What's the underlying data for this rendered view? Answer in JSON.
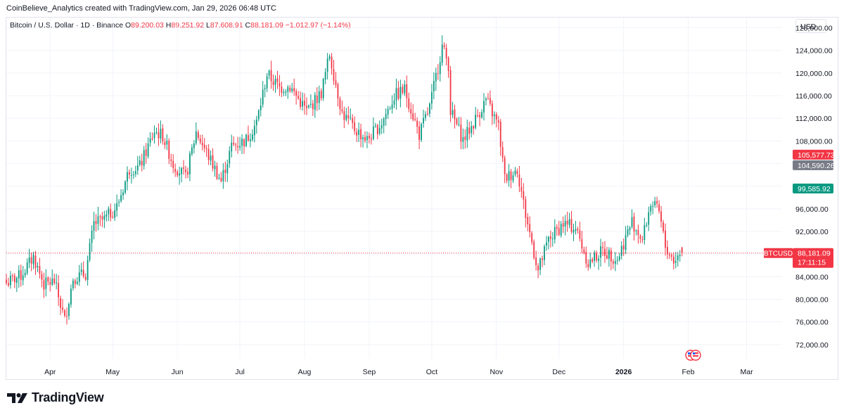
{
  "header": {
    "caption": "CoinBelieve_Analytics created with TradingView.com, Jan 29, 2026 06:48 UTC"
  },
  "legend": {
    "symbol": "Bitcoin / U.S. Dollar · 1D · Binance",
    "open_label": "O",
    "open": "89,200.03",
    "high_label": "H",
    "high": "89,251.92",
    "low_label": "L",
    "low": "87,608.91",
    "close_label": "C",
    "close": "88,181.09",
    "change": "−1,012.97 (−1.14%)"
  },
  "currency_button": "USD",
  "brand": {
    "name": "TradingView"
  },
  "colors": {
    "up": "#089981",
    "down": "#f23645",
    "grid": "#f0f3fa",
    "gray_label": "#787b86"
  },
  "chart_data": {
    "type": "candlestick",
    "symbol": "BTCUSD",
    "interval": "1D",
    "y_axis": {
      "range": [
        69500,
        129800
      ],
      "ticks": [
        72000,
        76000,
        80000,
        84000,
        88000,
        92000,
        96000,
        100000,
        104000,
        108000,
        112000,
        116000,
        120000,
        124000,
        128000
      ],
      "tick_labels": [
        "72,000.00",
        "76,000.00",
        "80,000.00",
        "84,000.00",
        "88,000.00",
        "92,000.00",
        "96,000.00",
        "100,000.00",
        "104,000.00",
        "108,000.00",
        "112,000.00",
        "116,000.00",
        "120,000.00",
        "124,000.00",
        "128,000.00"
      ]
    },
    "x_axis": {
      "range": [
        "2025-03-11",
        "2026-03-18"
      ],
      "ticks": [
        {
          "label": "Apr",
          "date": "2025-04-01",
          "bold": false
        },
        {
          "label": "May",
          "date": "2025-05-01",
          "bold": false
        },
        {
          "label": "Jun",
          "date": "2025-06-01",
          "bold": false
        },
        {
          "label": "Jul",
          "date": "2025-07-01",
          "bold": false
        },
        {
          "label": "Aug",
          "date": "2025-08-01",
          "bold": false
        },
        {
          "label": "Sep",
          "date": "2025-09-01",
          "bold": false
        },
        {
          "label": "Oct",
          "date": "2025-10-01",
          "bold": false
        },
        {
          "label": "Nov",
          "date": "2025-11-01",
          "bold": false
        },
        {
          "label": "Dec",
          "date": "2025-12-01",
          "bold": false
        },
        {
          "label": "2026",
          "date": "2026-01-01",
          "bold": true
        },
        {
          "label": "Feb",
          "date": "2026-02-01",
          "bold": false
        },
        {
          "label": "Mar",
          "date": "2026-03-01",
          "bold": false
        }
      ]
    },
    "current_price": {
      "label": "BTCUSD",
      "value": 88181.09,
      "value_text": "88,181.09",
      "countdown": "17:11:15"
    },
    "price_tags": [
      {
        "value": 105577.73,
        "text": "105,577.73",
        "color": "#f23645"
      },
      {
        "value": 104590.26,
        "text": "104,590.26",
        "color": "#787b86"
      },
      {
        "value": 99585.92,
        "text": "99,585.92",
        "color": "#089981"
      }
    ],
    "grid": true,
    "close_anchors": [
      {
        "date": "2025-03-11",
        "close": 82900
      },
      {
        "date": "2025-03-18",
        "close": 84200
      },
      {
        "date": "2025-03-24",
        "close": 87500
      },
      {
        "date": "2025-03-29",
        "close": 82600
      },
      {
        "date": "2025-04-03",
        "close": 83200
      },
      {
        "date": "2025-04-08",
        "close": 76300
      },
      {
        "date": "2025-04-12",
        "close": 83800
      },
      {
        "date": "2025-04-18",
        "close": 84500
      },
      {
        "date": "2025-04-22",
        "close": 93400
      },
      {
        "date": "2025-04-27",
        "close": 94100
      },
      {
        "date": "2025-05-03",
        "close": 96400
      },
      {
        "date": "2025-05-09",
        "close": 103000
      },
      {
        "date": "2025-05-14",
        "close": 103500
      },
      {
        "date": "2025-05-21",
        "close": 109700
      },
      {
        "date": "2025-05-25",
        "close": 108900
      },
      {
        "date": "2025-05-30",
        "close": 103900
      },
      {
        "date": "2025-06-05",
        "close": 101500
      },
      {
        "date": "2025-06-10",
        "close": 109600
      },
      {
        "date": "2025-06-17",
        "close": 104500
      },
      {
        "date": "2025-06-22",
        "close": 100900
      },
      {
        "date": "2025-06-27",
        "close": 107000
      },
      {
        "date": "2025-07-04",
        "close": 108200
      },
      {
        "date": "2025-07-09",
        "close": 111300
      },
      {
        "date": "2025-07-14",
        "close": 119800
      },
      {
        "date": "2025-07-20",
        "close": 117400
      },
      {
        "date": "2025-07-25",
        "close": 117600
      },
      {
        "date": "2025-08-02",
        "close": 113300
      },
      {
        "date": "2025-08-09",
        "close": 116500
      },
      {
        "date": "2025-08-13",
        "close": 123300
      },
      {
        "date": "2025-08-19",
        "close": 112900
      },
      {
        "date": "2025-08-25",
        "close": 110100
      },
      {
        "date": "2025-08-31",
        "close": 108200
      },
      {
        "date": "2025-09-07",
        "close": 111200
      },
      {
        "date": "2025-09-13",
        "close": 115900
      },
      {
        "date": "2025-09-18",
        "close": 117100
      },
      {
        "date": "2025-09-25",
        "close": 109100
      },
      {
        "date": "2025-09-30",
        "close": 114000
      },
      {
        "date": "2025-10-06",
        "close": 124700
      },
      {
        "date": "2025-10-09",
        "close": 121500
      },
      {
        "date": "2025-10-10",
        "close": 113300
      },
      {
        "date": "2025-10-16",
        "close": 108200
      },
      {
        "date": "2025-10-20",
        "close": 110500
      },
      {
        "date": "2025-10-27",
        "close": 115300
      },
      {
        "date": "2025-11-02",
        "close": 110600
      },
      {
        "date": "2025-11-05",
        "close": 101300
      },
      {
        "date": "2025-11-11",
        "close": 103000
      },
      {
        "date": "2025-11-15",
        "close": 95000
      },
      {
        "date": "2025-11-21",
        "close": 85100
      },
      {
        "date": "2025-11-26",
        "close": 90500
      },
      {
        "date": "2025-12-03",
        "close": 93400
      },
      {
        "date": "2025-12-09",
        "close": 92600
      },
      {
        "date": "2025-12-15",
        "close": 86400
      },
      {
        "date": "2025-12-22",
        "close": 88600
      },
      {
        "date": "2025-12-29",
        "close": 87100
      },
      {
        "date": "2026-01-05",
        "close": 93800
      },
      {
        "date": "2026-01-10",
        "close": 90500
      },
      {
        "date": "2026-01-14",
        "close": 97100
      },
      {
        "date": "2026-01-18",
        "close": 95300
      },
      {
        "date": "2026-01-21",
        "close": 89300
      },
      {
        "date": "2026-01-25",
        "close": 86900
      },
      {
        "date": "2026-01-29",
        "close": 88181
      }
    ]
  }
}
